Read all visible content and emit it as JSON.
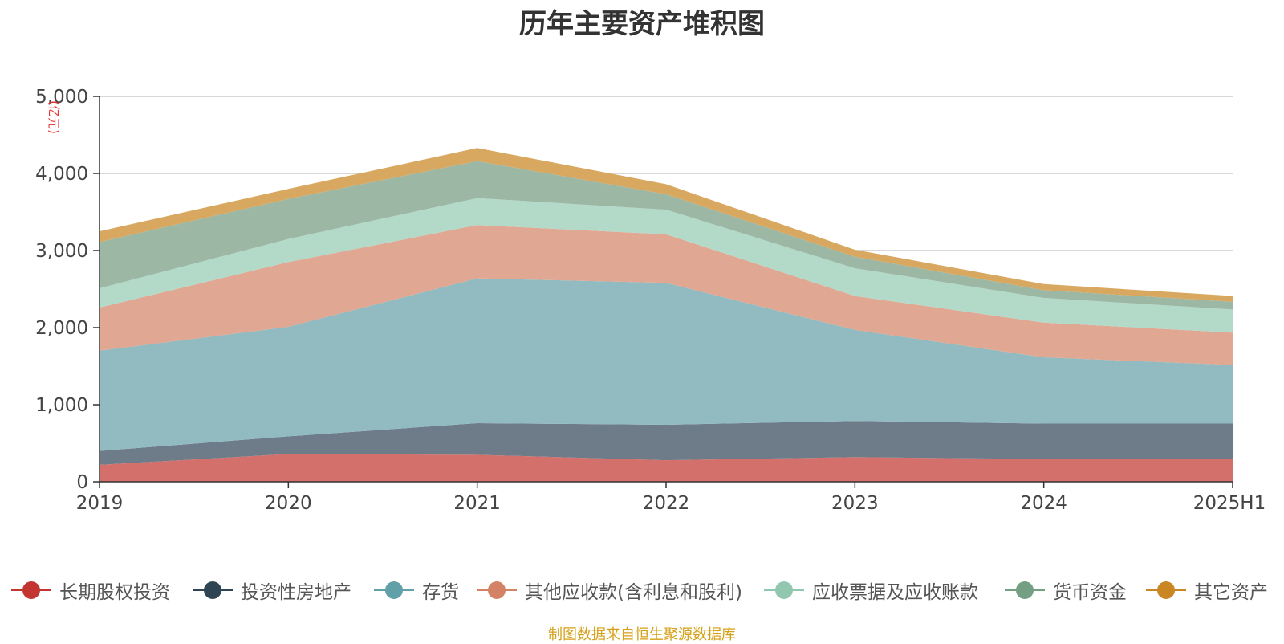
{
  "chart_data": {
    "type": "area",
    "stacked": true,
    "title": "历年主要资产堆积图",
    "ylabel": "(亿元)",
    "xlabel": "",
    "categories": [
      "2019",
      "2020",
      "2021",
      "2022",
      "2023",
      "2024",
      "2025H1"
    ],
    "ylim": [
      0,
      5000
    ],
    "yticks": [
      0,
      1000,
      2000,
      3000,
      4000,
      5000
    ],
    "ytick_labels": [
      "0",
      "1,000",
      "2,000",
      "3,000",
      "4,000",
      "5,000"
    ],
    "grid": true,
    "legend_position": "bottom",
    "series": [
      {
        "name": "长期股权投资",
        "color": "#c23531",
        "fill": "#d4706c",
        "values": [
          220,
          360,
          350,
          280,
          320,
          295,
          295
        ]
      },
      {
        "name": "投资性房地产",
        "color": "#2f4554",
        "fill": "#6d7c88",
        "values": [
          180,
          230,
          410,
          460,
          470,
          460,
          460
        ]
      },
      {
        "name": "存货",
        "color": "#61a0a8",
        "fill": "#91bac1",
        "values": [
          1300,
          1420,
          1880,
          1840,
          1180,
          860,
          760
        ]
      },
      {
        "name": "其他应收款(含利息和股利)",
        "color": "#d48265",
        "fill": "#e0a792",
        "values": [
          560,
          840,
          690,
          630,
          440,
          450,
          420
        ]
      },
      {
        "name": "应收票据及应收账款",
        "color": "#91c7ae",
        "fill": "#b3d9c8",
        "values": [
          250,
          300,
          350,
          320,
          360,
          320,
          300
        ]
      },
      {
        "name": "货币资金",
        "color": "#749f83",
        "fill": "#9cb8a5",
        "values": [
          600,
          520,
          480,
          200,
          150,
          100,
          100
        ]
      },
      {
        "name": "其它资产",
        "color": "#ca8622",
        "fill": "#d8a860",
        "values": [
          140,
          130,
          170,
          130,
          90,
          80,
          75
        ]
      }
    ]
  },
  "source_note": "制图数据来自恒生聚源数据库"
}
